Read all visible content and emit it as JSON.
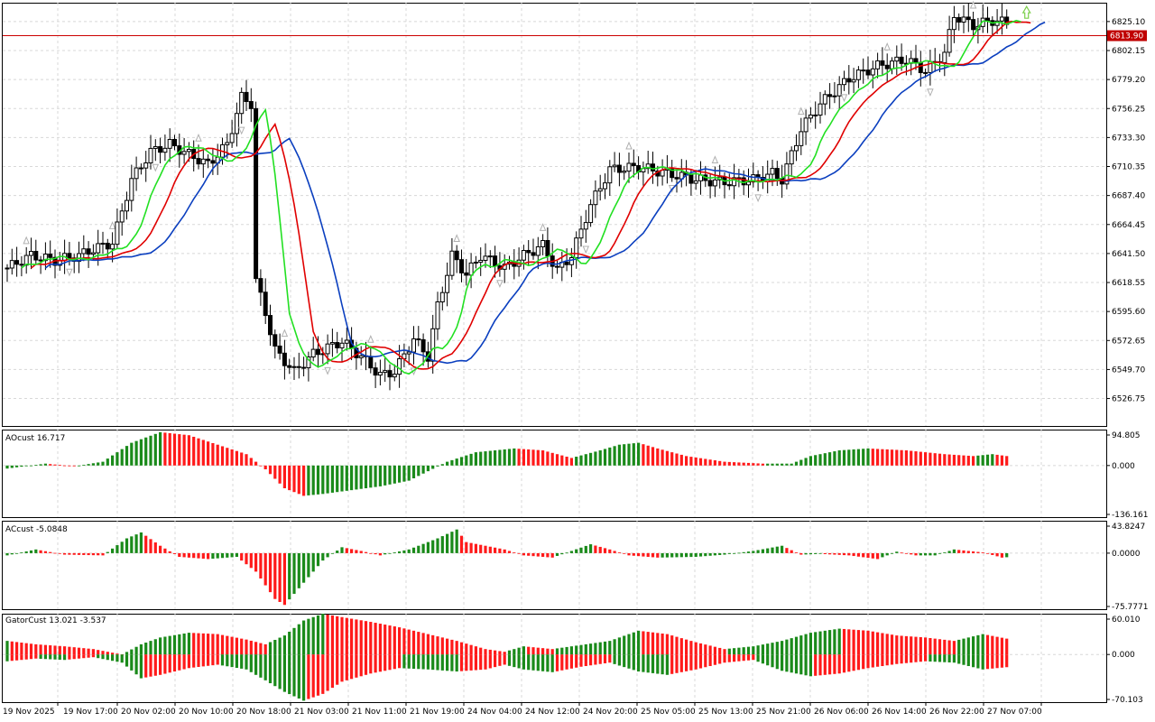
{
  "colors": {
    "bull": "#00ff00",
    "bear": "#ff0000",
    "jaw": "#0b3fbf",
    "teeth": "#e00000",
    "lips": "#22e022",
    "grid": "#d8d8d8",
    "ao_up": "#1a8a1a",
    "ao_down": "#ff1a1a",
    "bid_line": "#cc0000",
    "bid_tag": "#c00000",
    "fractal": "#b0b0b0",
    "arrow": "#7ccf4a"
  },
  "icons": {
    "fractal": "fractal-arrow-icon",
    "signal": "buy-signal-arrow-icon"
  },
  "price_axis": {
    "ticks": [
      "6825.10",
      "6802.15",
      "6779.20",
      "6756.25",
      "6733.30",
      "6710.35",
      "6687.40",
      "6664.45",
      "6641.50",
      "6618.55",
      "6595.60",
      "6572.65",
      "6549.70",
      "6526.75"
    ],
    "current_price": "6813.90",
    "range": [
      6505,
      6840
    ]
  },
  "time_axis": {
    "labels": [
      "19 Nov 2025",
      "19 Nov 17:00",
      "20 Nov 02:00",
      "20 Nov 10:00",
      "20 Nov 18:00",
      "21 Nov 03:00",
      "21 Nov 11:00",
      "21 Nov 19:00",
      "24 Nov 04:00",
      "24 Nov 12:00",
      "24 Nov 20:00",
      "25 Nov 05:00",
      "25 Nov 13:00",
      "25 Nov 21:00",
      "26 Nov 06:00",
      "26 Nov 14:00",
      "26 Nov 22:00",
      "27 Nov 07:00"
    ]
  },
  "ao_pane": {
    "label": "AOcust 16.717",
    "ticks": [
      "94.805",
      "0.000",
      "-136.161"
    ],
    "range": [
      -136.161,
      94.805
    ]
  },
  "ac_pane": {
    "label": "ACcust -5.0848",
    "ticks": [
      "43.8247",
      "0.0000",
      "-75.7771"
    ],
    "range": [
      -75.7771,
      43.8247
    ]
  },
  "gator_pane": {
    "label": "GatorCust 13.021 -3.537",
    "ticks": [
      "60.010",
      "0.000",
      "-70.103"
    ],
    "range": [
      -70.103,
      60.01
    ]
  },
  "chart_data": {
    "type": "candlestick",
    "symbol_note": "",
    "price_anchors": [
      [
        0,
        6630
      ],
      [
        5,
        6640
      ],
      [
        10,
        6636
      ],
      [
        15,
        6640
      ],
      [
        18,
        6645
      ],
      [
        22,
        6650
      ],
      [
        26,
        6700
      ],
      [
        30,
        6722
      ],
      [
        34,
        6728
      ],
      [
        38,
        6720
      ],
      [
        42,
        6712
      ],
      [
        46,
        6728
      ],
      [
        49,
        6765
      ],
      [
        51,
        6760
      ],
      [
        52,
        6620
      ],
      [
        54,
        6595
      ],
      [
        56,
        6565
      ],
      [
        60,
        6548
      ],
      [
        64,
        6562
      ],
      [
        70,
        6572
      ],
      [
        74,
        6560
      ],
      [
        78,
        6545
      ],
      [
        81,
        6548
      ],
      [
        85,
        6574
      ],
      [
        88,
        6560
      ],
      [
        90,
        6600
      ],
      [
        93,
        6640
      ],
      [
        96,
        6625
      ],
      [
        99,
        6640
      ],
      [
        104,
        6630
      ],
      [
        108,
        6640
      ],
      [
        112,
        6648
      ],
      [
        115,
        6628
      ],
      [
        118,
        6640
      ],
      [
        122,
        6680
      ],
      [
        126,
        6708
      ],
      [
        132,
        6710
      ],
      [
        138,
        6705
      ],
      [
        144,
        6700
      ],
      [
        150,
        6698
      ],
      [
        156,
        6700
      ],
      [
        160,
        6705
      ],
      [
        162,
        6700
      ],
      [
        166,
        6740
      ],
      [
        170,
        6760
      ],
      [
        176,
        6780
      ],
      [
        182,
        6790
      ],
      [
        188,
        6795
      ],
      [
        192,
        6786
      ],
      [
        196,
        6800
      ],
      [
        198,
        6830
      ],
      [
        202,
        6822
      ],
      [
        206,
        6826
      ],
      [
        212,
        6822
      ],
      [
        218,
        6817
      ]
    ],
    "ao_anchors": [
      [
        0,
        -8
      ],
      [
        8,
        5
      ],
      [
        14,
        -2
      ],
      [
        20,
        10
      ],
      [
        26,
        60
      ],
      [
        32,
        88
      ],
      [
        38,
        80
      ],
      [
        44,
        55
      ],
      [
        50,
        30
      ],
      [
        54,
        -10
      ],
      [
        58,
        -60
      ],
      [
        62,
        -80
      ],
      [
        66,
        -75
      ],
      [
        72,
        -65
      ],
      [
        78,
        -55
      ],
      [
        84,
        -40
      ],
      [
        88,
        -15
      ],
      [
        92,
        10
      ],
      [
        98,
        35
      ],
      [
        106,
        45
      ],
      [
        112,
        40
      ],
      [
        118,
        20
      ],
      [
        124,
        40
      ],
      [
        128,
        55
      ],
      [
        132,
        60
      ],
      [
        136,
        45
      ],
      [
        142,
        25
      ],
      [
        150,
        10
      ],
      [
        158,
        5
      ],
      [
        164,
        5
      ],
      [
        168,
        25
      ],
      [
        174,
        40
      ],
      [
        180,
        45
      ],
      [
        188,
        40
      ],
      [
        196,
        30
      ],
      [
        202,
        25
      ],
      [
        206,
        30
      ],
      [
        212,
        20
      ],
      [
        218,
        12
      ]
    ],
    "ac_anchors": [
      [
        0,
        -3
      ],
      [
        6,
        5
      ],
      [
        12,
        -2
      ],
      [
        20,
        -3
      ],
      [
        25,
        20
      ],
      [
        28,
        28
      ],
      [
        32,
        10
      ],
      [
        36,
        -5
      ],
      [
        42,
        -8
      ],
      [
        48,
        -5
      ],
      [
        52,
        -25
      ],
      [
        56,
        -62
      ],
      [
        58,
        -70
      ],
      [
        62,
        -40
      ],
      [
        66,
        -10
      ],
      [
        70,
        8
      ],
      [
        74,
        3
      ],
      [
        78,
        -3
      ],
      [
        84,
        5
      ],
      [
        90,
        20
      ],
      [
        94,
        32
      ],
      [
        96,
        15
      ],
      [
        100,
        10
      ],
      [
        104,
        5
      ],
      [
        108,
        -3
      ],
      [
        114,
        -6
      ],
      [
        118,
        3
      ],
      [
        122,
        12
      ],
      [
        126,
        5
      ],
      [
        130,
        -3
      ],
      [
        136,
        -6
      ],
      [
        144,
        -5
      ],
      [
        150,
        -2
      ],
      [
        156,
        3
      ],
      [
        162,
        10
      ],
      [
        166,
        -2
      ],
      [
        170,
        -1
      ],
      [
        176,
        -3
      ],
      [
        182,
        -8
      ],
      [
        186,
        2
      ],
      [
        190,
        -3
      ],
      [
        194,
        -3
      ],
      [
        198,
        5
      ],
      [
        204,
        1
      ],
      [
        208,
        -6
      ],
      [
        214,
        -3
      ],
      [
        218,
        -2
      ]
    ],
    "gator_up_anchors": [
      [
        0,
        20
      ],
      [
        6,
        15
      ],
      [
        12,
        12
      ],
      [
        18,
        8
      ],
      [
        24,
        0
      ],
      [
        28,
        15
      ],
      [
        32,
        25
      ],
      [
        38,
        32
      ],
      [
        44,
        30
      ],
      [
        50,
        22
      ],
      [
        54,
        15
      ],
      [
        58,
        28
      ],
      [
        62,
        50
      ],
      [
        66,
        60
      ],
      [
        70,
        55
      ],
      [
        76,
        48
      ],
      [
        82,
        40
      ],
      [
        88,
        30
      ],
      [
        94,
        20
      ],
      [
        100,
        8
      ],
      [
        104,
        4
      ],
      [
        108,
        12
      ],
      [
        114,
        8
      ],
      [
        120,
        14
      ],
      [
        126,
        20
      ],
      [
        132,
        35
      ],
      [
        138,
        30
      ],
      [
        144,
        18
      ],
      [
        150,
        8
      ],
      [
        156,
        12
      ],
      [
        162,
        20
      ],
      [
        168,
        32
      ],
      [
        174,
        38
      ],
      [
        180,
        35
      ],
      [
        186,
        28
      ],
      [
        192,
        25
      ],
      [
        198,
        20
      ],
      [
        204,
        30
      ],
      [
        210,
        22
      ],
      [
        216,
        15
      ],
      [
        220,
        10
      ]
    ],
    "gator_down_anchors": [
      [
        0,
        -10
      ],
      [
        6,
        -6
      ],
      [
        12,
        -8
      ],
      [
        18,
        -4
      ],
      [
        24,
        -12
      ],
      [
        28,
        -35
      ],
      [
        32,
        -30
      ],
      [
        38,
        -20
      ],
      [
        44,
        -15
      ],
      [
        50,
        -22
      ],
      [
        54,
        -38
      ],
      [
        58,
        -55
      ],
      [
        62,
        -68
      ],
      [
        66,
        -58
      ],
      [
        70,
        -40
      ],
      [
        76,
        -28
      ],
      [
        82,
        -20
      ],
      [
        88,
        -22
      ],
      [
        94,
        -25
      ],
      [
        100,
        -22
      ],
      [
        104,
        -15
      ],
      [
        108,
        -22
      ],
      [
        114,
        -26
      ],
      [
        120,
        -18
      ],
      [
        126,
        -12
      ],
      [
        132,
        -25
      ],
      [
        138,
        -30
      ],
      [
        144,
        -22
      ],
      [
        150,
        -12
      ],
      [
        156,
        -8
      ],
      [
        162,
        -24
      ],
      [
        168,
        -32
      ],
      [
        174,
        -28
      ],
      [
        180,
        -20
      ],
      [
        186,
        -14
      ],
      [
        192,
        -10
      ],
      [
        198,
        -12
      ],
      [
        204,
        -22
      ],
      [
        210,
        -18
      ],
      [
        216,
        -10
      ],
      [
        220,
        -6
      ]
    ]
  }
}
